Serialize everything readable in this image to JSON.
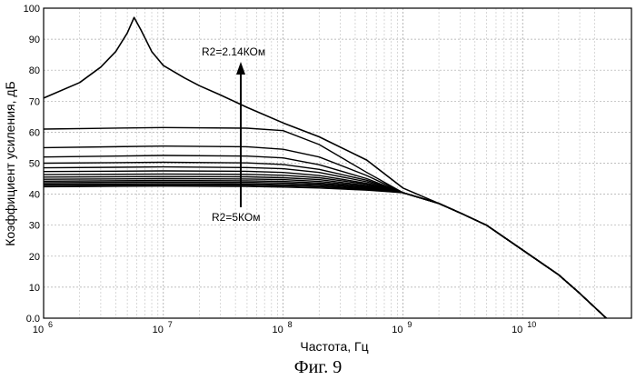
{
  "chart_data": {
    "type": "line",
    "title": "",
    "xlabel": "Частота, Гц",
    "ylabel": "Коэффициент усиления, дБ",
    "xscale": "log",
    "xlim": [
      1000000,
      50000000000
    ],
    "ylim": [
      0,
      100
    ],
    "grid": true,
    "x_ticks": [
      {
        "base": "10",
        "exp": "6",
        "value": 1000000
      },
      {
        "base": "10",
        "exp": "7",
        "value": 10000000
      },
      {
        "base": "10",
        "exp": "8",
        "value": 100000000
      },
      {
        "base": "10",
        "exp": "9",
        "value": 1000000000
      },
      {
        "base": "10",
        "exp": "10",
        "value": 10000000000
      }
    ],
    "y_ticks": [
      "0.0",
      "10",
      "20",
      "30",
      "40",
      "50",
      "60",
      "70",
      "80",
      "90",
      "100"
    ],
    "annotations": [
      {
        "text": "R2=2.14КОм"
      },
      {
        "text": "R2=5КОм"
      }
    ],
    "caption": "Фиг. 9",
    "series": [
      {
        "x": [
          1000000.0,
          2000000.0,
          3000000.0,
          4000000.0,
          5000000.0,
          5700000.0,
          6500000.0,
          8000000.0,
          10000000.0,
          15000000.0,
          20000000.0,
          30000000.0,
          50000000.0,
          100000000.0,
          200000000.0,
          500000000.0,
          1000000000.0,
          2000000000.0,
          3000000000.0,
          5000000000.0,
          10000000000.0,
          20000000000.0,
          30000000000.0,
          50000000000.0
        ],
        "y": [
          71,
          76,
          81,
          86,
          92,
          97,
          93,
          86,
          81.5,
          77.5,
          75,
          72,
          68,
          63,
          58.5,
          51,
          42,
          37,
          34,
          30,
          22,
          14,
          8,
          0
        ]
      },
      {
        "x": [
          1000000.0,
          10000000.0,
          50000000.0,
          100000000.0,
          200000000.0,
          500000000.0,
          1000000000.0,
          2000000000.0,
          3000000000.0,
          5000000000.0,
          10000000000.0,
          20000000000.0,
          30000000000.0,
          50000000000.0
        ],
        "y": [
          61,
          61.5,
          61.3,
          60.5,
          56,
          47,
          40.5,
          37,
          34,
          30,
          22,
          14,
          8,
          0
        ]
      },
      {
        "x": [
          1000000.0,
          10000000.0,
          50000000.0,
          100000000.0,
          200000000.0,
          500000000.0,
          1000000000.0,
          2000000000.0,
          3000000000.0,
          5000000000.0,
          10000000000.0,
          20000000000.0,
          30000000000.0,
          50000000000.0
        ],
        "y": [
          55,
          55.5,
          55.3,
          54.5,
          52,
          46,
          40.5,
          37,
          34,
          30,
          22,
          14,
          8,
          0
        ]
      },
      {
        "x": [
          1000000.0,
          10000000.0,
          50000000.0,
          100000000.0,
          200000000.0,
          500000000.0,
          1000000000.0,
          2000000000.0,
          3000000000.0,
          5000000000.0,
          10000000000.0,
          20000000000.0,
          30000000000.0,
          50000000000.0
        ],
        "y": [
          52,
          52.5,
          52.3,
          51.7,
          49.5,
          45,
          40.5,
          37,
          34,
          30,
          22,
          14,
          8,
          0
        ]
      },
      {
        "x": [
          1000000.0,
          10000000.0,
          50000000.0,
          100000000.0,
          200000000.0,
          500000000.0,
          1000000000.0,
          2000000000.0,
          3000000000.0,
          5000000000.0,
          10000000000.0,
          20000000000.0,
          30000000000.0,
          50000000000.0
        ],
        "y": [
          50,
          50.3,
          50.1,
          49.6,
          48,
          44.5,
          40.5,
          37,
          34,
          30,
          22,
          14,
          8,
          0
        ]
      },
      {
        "x": [
          1000000.0,
          10000000.0,
          50000000.0,
          100000000.0,
          200000000.0,
          500000000.0,
          1000000000.0,
          2000000000.0,
          3000000000.0,
          5000000000.0,
          10000000000.0,
          20000000000.0,
          30000000000.0,
          50000000000.0
        ],
        "y": [
          48.5,
          48.8,
          48.6,
          48.2,
          47,
          44,
          40.5,
          37,
          34,
          30,
          22,
          14,
          8,
          0
        ]
      },
      {
        "x": [
          1000000.0,
          10000000.0,
          50000000.0,
          100000000.0,
          200000000.0,
          500000000.0,
          1000000000.0,
          2000000000.0,
          3000000000.0,
          5000000000.0,
          10000000000.0,
          20000000000.0,
          30000000000.0,
          50000000000.0
        ],
        "y": [
          47.3,
          47.5,
          47.4,
          47,
          46,
          43.5,
          40.5,
          37,
          34,
          30,
          22,
          14,
          8,
          0
        ]
      },
      {
        "x": [
          1000000.0,
          10000000.0,
          50000000.0,
          100000000.0,
          200000000.0,
          500000000.0,
          1000000000.0,
          2000000000.0,
          3000000000.0,
          5000000000.0,
          10000000000.0,
          20000000000.0,
          30000000000.0,
          50000000000.0
        ],
        "y": [
          46.3,
          46.5,
          46.4,
          46.1,
          45.3,
          43.2,
          40.5,
          37,
          34,
          30,
          22,
          14,
          8,
          0
        ]
      },
      {
        "x": [
          1000000.0,
          10000000.0,
          50000000.0,
          100000000.0,
          200000000.0,
          500000000.0,
          1000000000.0,
          2000000000.0,
          3000000000.0,
          5000000000.0,
          10000000000.0,
          20000000000.0,
          30000000000.0,
          50000000000.0
        ],
        "y": [
          45.5,
          45.7,
          45.6,
          45.3,
          44.7,
          42.8,
          40.5,
          37,
          34,
          30,
          22,
          14,
          8,
          0
        ]
      },
      {
        "x": [
          1000000.0,
          10000000.0,
          50000000.0,
          100000000.0,
          200000000.0,
          500000000.0,
          1000000000.0,
          2000000000.0,
          3000000000.0,
          5000000000.0,
          10000000000.0,
          20000000000.0,
          30000000000.0,
          50000000000.0
        ],
        "y": [
          44.8,
          45,
          44.9,
          44.7,
          44.1,
          42.5,
          40.5,
          37,
          34,
          30,
          22,
          14,
          8,
          0
        ]
      },
      {
        "x": [
          1000000.0,
          10000000.0,
          50000000.0,
          100000000.0,
          200000000.0,
          500000000.0,
          1000000000.0,
          2000000000.0,
          3000000000.0,
          5000000000.0,
          10000000000.0,
          20000000000.0,
          30000000000.0,
          50000000000.0
        ],
        "y": [
          44.2,
          44.4,
          44.3,
          44.1,
          43.6,
          42.2,
          40.5,
          37,
          34,
          30,
          22,
          14,
          8,
          0
        ]
      },
      {
        "x": [
          1000000.0,
          10000000.0,
          50000000.0,
          100000000.0,
          200000000.0,
          500000000.0,
          1000000000.0,
          2000000000.0,
          3000000000.0,
          5000000000.0,
          10000000000.0,
          20000000000.0,
          30000000000.0,
          50000000000.0
        ],
        "y": [
          43.7,
          43.9,
          43.8,
          43.6,
          43.2,
          42,
          40.5,
          37,
          34,
          30,
          22,
          14,
          8,
          0
        ]
      },
      {
        "x": [
          1000000.0,
          10000000.0,
          50000000.0,
          100000000.0,
          200000000.0,
          500000000.0,
          1000000000.0,
          2000000000.0,
          3000000000.0,
          5000000000.0,
          10000000000.0,
          20000000000.0,
          30000000000.0,
          50000000000.0
        ],
        "y": [
          43.2,
          43.4,
          43.3,
          43.1,
          42.8,
          41.7,
          40.5,
          37,
          34,
          30,
          22,
          14,
          8,
          0
        ]
      },
      {
        "x": [
          1000000.0,
          10000000.0,
          50000000.0,
          100000000.0,
          200000000.0,
          500000000.0,
          1000000000.0,
          2000000000.0,
          3000000000.0,
          5000000000.0,
          10000000000.0,
          20000000000.0,
          30000000000.0,
          50000000000.0
        ],
        "y": [
          42.8,
          43,
          42.9,
          42.7,
          42.4,
          41.5,
          40.5,
          37,
          34,
          30,
          22,
          14,
          8,
          0
        ]
      },
      {
        "x": [
          1000000.0,
          10000000.0,
          50000000.0,
          100000000.0,
          200000000.0,
          500000000.0,
          1000000000.0,
          2000000000.0,
          3000000000.0,
          5000000000.0,
          10000000000.0,
          20000000000.0,
          30000000000.0,
          50000000000.0
        ],
        "y": [
          42.4,
          42.6,
          42.5,
          42.3,
          42,
          41.3,
          40.5,
          37,
          34,
          30,
          22,
          14,
          8,
          0
        ]
      }
    ]
  }
}
